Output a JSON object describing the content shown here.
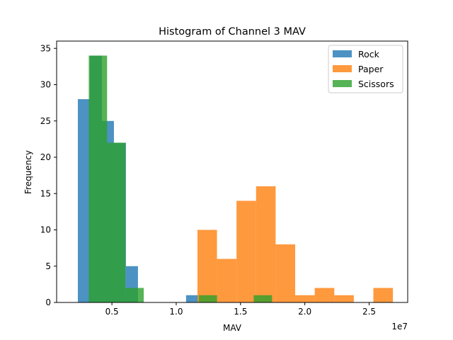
{
  "chart_data": {
    "type": "bar",
    "subtype": "histogram-overlay",
    "title": "Histogram of Channel 3 MAV",
    "xlabel": "MAV",
    "ylabel": "Frequency",
    "x_offset_label": "1e7",
    "xlim": [
      0.07,
      2.8
    ],
    "ylim": [
      0,
      36
    ],
    "x_unit_multiplier": 10000000,
    "xticks": [
      {
        "value": 0.5,
        "label": "0.5"
      },
      {
        "value": 1.0,
        "label": "1.0"
      },
      {
        "value": 1.5,
        "label": "1.5"
      },
      {
        "value": 2.0,
        "label": "2.0"
      },
      {
        "value": 2.5,
        "label": "2.5"
      }
    ],
    "yticks": [
      {
        "value": 0,
        "label": "0"
      },
      {
        "value": 5,
        "label": "5"
      },
      {
        "value": 10,
        "label": "10"
      },
      {
        "value": 15,
        "label": "15"
      },
      {
        "value": 20,
        "label": "20"
      },
      {
        "value": 25,
        "label": "25"
      },
      {
        "value": 30,
        "label": "30"
      },
      {
        "value": 35,
        "label": "35"
      }
    ],
    "legend_position": "top-right",
    "opacity": 0.8,
    "series": [
      {
        "name": "Rock",
        "color": "#1f77b4",
        "bin_edges": [
          0.235,
          0.3285,
          0.422,
          0.5155,
          0.609,
          0.7025,
          0.796,
          0.8895,
          0.983,
          1.0765,
          1.17
        ],
        "counts": [
          28,
          34,
          25,
          22,
          5,
          0,
          0,
          0,
          0,
          1
        ]
      },
      {
        "name": "Paper",
        "color": "#ff7f0e",
        "bin_edges": [
          1.165,
          1.317,
          1.469,
          1.621,
          1.773,
          1.925,
          2.077,
          2.229,
          2.381,
          2.533,
          2.685
        ],
        "counts": [
          10,
          6,
          14,
          16,
          8,
          1,
          2,
          1,
          0,
          2
        ]
      },
      {
        "name": "Scissors",
        "color": "#2ca02c",
        "bin_edges": [
          0.32,
          0.4625,
          0.605,
          0.7475,
          0.89,
          1.0325,
          1.175,
          1.3175,
          1.46,
          1.6025,
          1.745
        ],
        "counts": [
          34,
          22,
          2,
          0,
          0,
          0,
          1,
          0,
          0,
          1
        ]
      }
    ]
  }
}
